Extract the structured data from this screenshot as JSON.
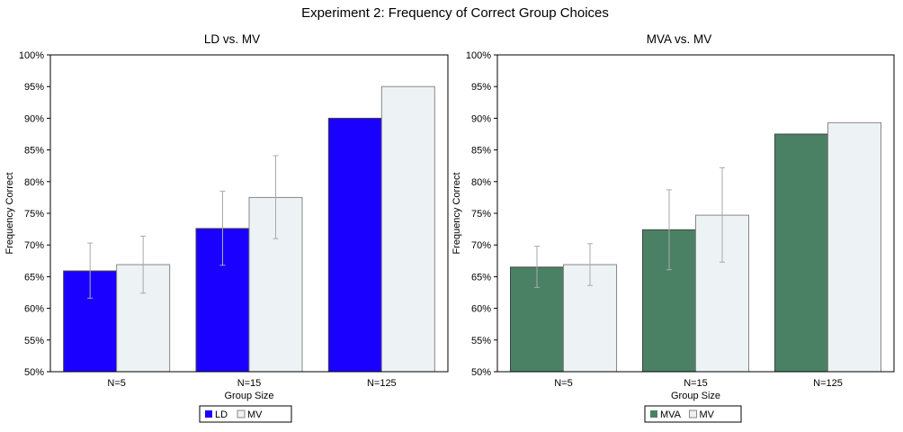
{
  "figure_title": "Experiment 2: Frequency of Correct Group Choices",
  "chart_data": [
    {
      "type": "bar",
      "title": "LD vs. MV",
      "xlabel": "Group Size",
      "ylabel": "Frequency Correct",
      "ylim": [
        50,
        100
      ],
      "yticks": [
        50,
        55,
        60,
        65,
        70,
        75,
        80,
        85,
        90,
        95,
        100
      ],
      "ytick_labels": [
        "50%",
        "55%",
        "60%",
        "65%",
        "70%",
        "75%",
        "80%",
        "85%",
        "90%",
        "95%",
        "100%"
      ],
      "grid": false,
      "legend_position": "bottom-center",
      "categories": [
        "N=5",
        "N=15",
        "N=125"
      ],
      "series": [
        {
          "name": "LD",
          "color": "#1a00ff",
          "values": [
            65.9,
            72.6,
            90.0
          ],
          "error_low": [
            61.6,
            66.8,
            null
          ],
          "error_high": [
            70.3,
            78.5,
            null
          ]
        },
        {
          "name": "MV",
          "color": "#edf2f4",
          "values": [
            66.9,
            77.5,
            95.0
          ],
          "error_low": [
            62.4,
            71.0,
            null
          ],
          "error_high": [
            71.4,
            84.1,
            null
          ]
        }
      ]
    },
    {
      "type": "bar",
      "title": "MVA vs. MV",
      "xlabel": "Group Size",
      "ylabel": "Frequency Correct",
      "ylim": [
        50,
        100
      ],
      "yticks": [
        50,
        55,
        60,
        65,
        70,
        75,
        80,
        85,
        90,
        95,
        100
      ],
      "ytick_labels": [
        "50%",
        "55%",
        "60%",
        "65%",
        "70%",
        "75%",
        "80%",
        "85%",
        "90%",
        "95%",
        "100%"
      ],
      "grid": false,
      "legend_position": "bottom-center",
      "categories": [
        "N=5",
        "N=15",
        "N=125"
      ],
      "series": [
        {
          "name": "MVA",
          "color": "#4a8164",
          "values": [
            66.5,
            72.4,
            87.5
          ],
          "error_low": [
            63.3,
            66.1,
            null
          ],
          "error_high": [
            69.8,
            78.7,
            null
          ]
        },
        {
          "name": "MV",
          "color": "#edf2f4",
          "values": [
            66.9,
            74.7,
            89.3
          ],
          "error_low": [
            63.6,
            67.3,
            null
          ],
          "error_high": [
            70.2,
            82.2,
            null
          ]
        }
      ]
    }
  ]
}
